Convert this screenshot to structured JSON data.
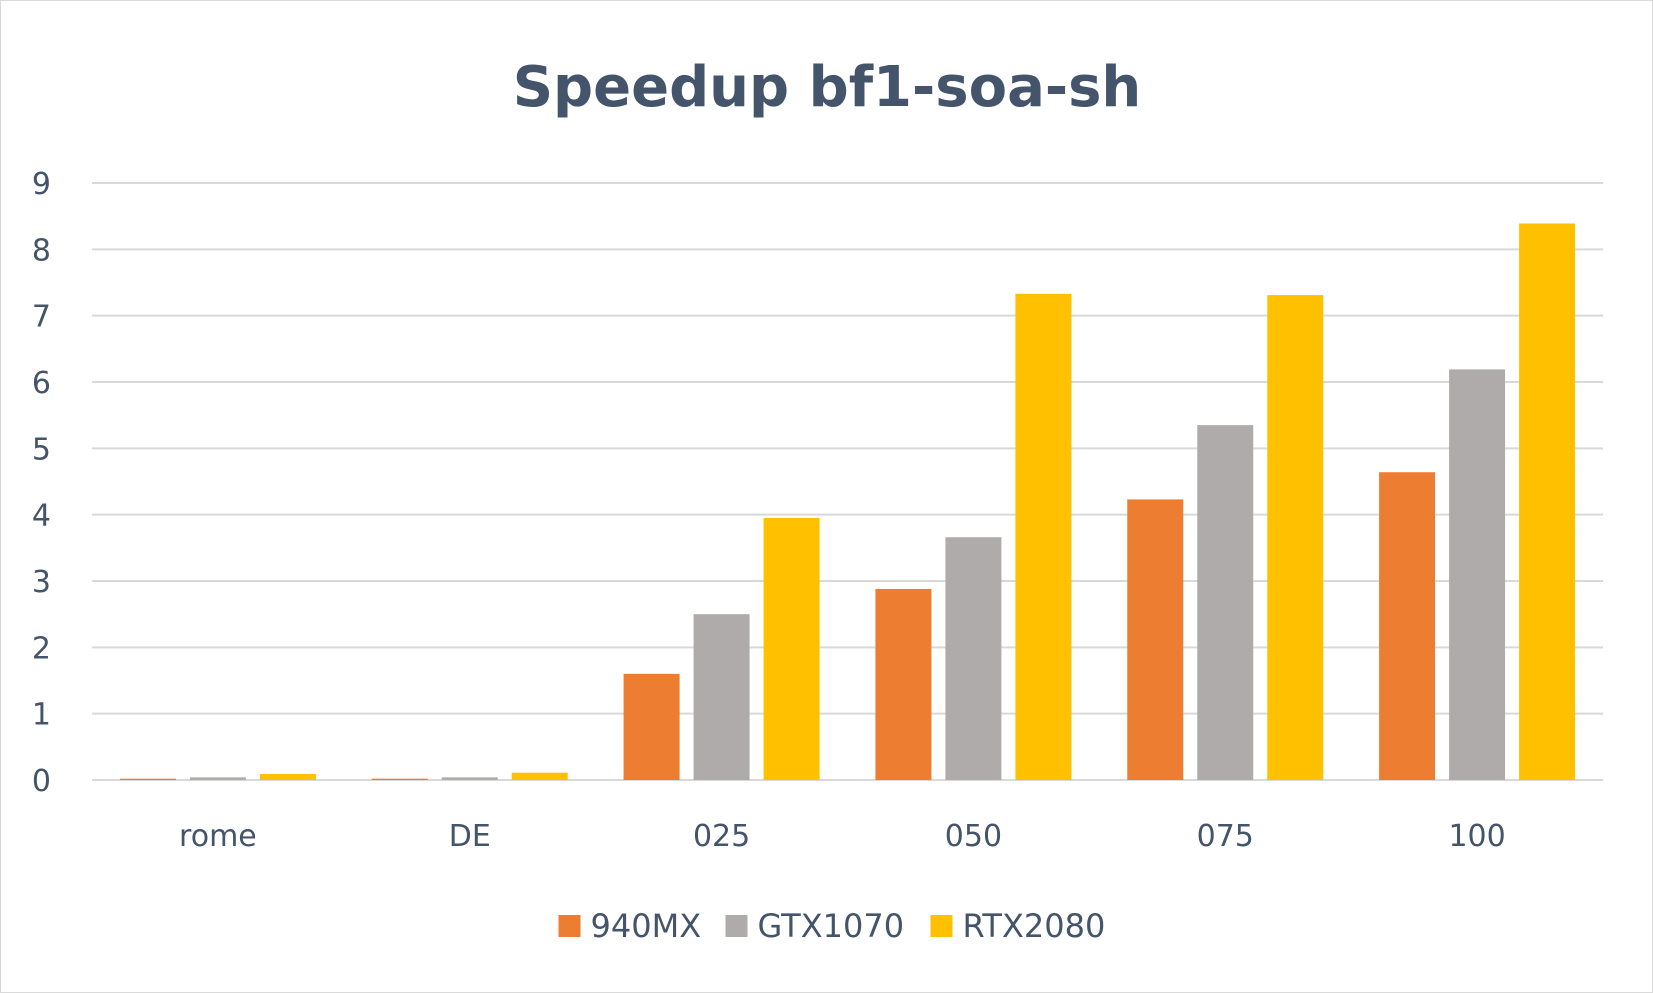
{
  "chart_data": {
    "type": "bar",
    "title": "Speedup bf1-soa-sh",
    "xlabel": "",
    "ylabel": "",
    "categories": [
      "rome",
      "DE",
      "025",
      "050",
      "075",
      "100"
    ],
    "series": [
      {
        "name": "940MX",
        "color": "#ed7d31",
        "values": [
          0.02,
          0.02,
          1.6,
          2.88,
          4.23,
          4.64
        ]
      },
      {
        "name": "GTX1070",
        "color": "#afabab",
        "values": [
          0.04,
          0.04,
          2.5,
          3.66,
          5.35,
          6.19
        ]
      },
      {
        "name": "RTX2080",
        "color": "#ffc000",
        "values": [
          0.09,
          0.11,
          3.95,
          7.33,
          7.31,
          8.39
        ]
      }
    ],
    "ylim": [
      0,
      9
    ],
    "yticks": [
      "0",
      "1",
      "2",
      "3",
      "4",
      "5",
      "6",
      "7",
      "8",
      "9"
    ],
    "grid": true,
    "legend_position": "bottom"
  },
  "colors": {
    "title": "#44546a",
    "text": "#44546a",
    "grid": "#d9d9d9"
  }
}
